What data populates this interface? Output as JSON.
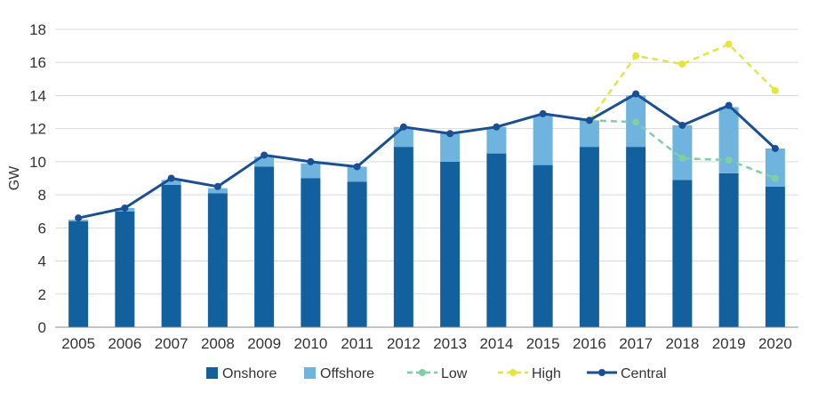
{
  "chart_data": {
    "type": "bar",
    "ylabel": "GW",
    "xlabel": "",
    "ylim": [
      0,
      18
    ],
    "yticks": [
      0,
      2,
      4,
      6,
      8,
      10,
      12,
      14,
      16,
      18
    ],
    "grid": true,
    "legend_position": "bottom",
    "categories": [
      "2005",
      "2006",
      "2007",
      "2008",
      "2009",
      "2010",
      "2011",
      "2012",
      "2013",
      "2014",
      "2015",
      "2016",
      "2017",
      "2018",
      "2019",
      "2020"
    ],
    "stacked_bars": [
      {
        "name": "Onshore",
        "color": "#12609e",
        "values": [
          6.4,
          7.0,
          8.6,
          8.1,
          9.7,
          9.0,
          8.8,
          10.9,
          10.0,
          10.5,
          9.8,
          10.9,
          10.9,
          8.9,
          9.3,
          8.5
        ]
      },
      {
        "name": "Offshore",
        "color": "#6fb4df",
        "values": [
          0.1,
          0.2,
          0.3,
          0.3,
          0.6,
          0.9,
          0.9,
          1.2,
          1.7,
          1.6,
          3.0,
          1.6,
          3.1,
          3.3,
          4.0,
          2.3
        ]
      }
    ],
    "lines": [
      {
        "name": "Low",
        "color": "#7fcfa3",
        "dashed": true,
        "values": [
          null,
          null,
          null,
          null,
          null,
          null,
          null,
          null,
          null,
          null,
          null,
          12.5,
          12.4,
          10.2,
          10.1,
          9.0
        ]
      },
      {
        "name": "High",
        "color": "#e4e63f",
        "dashed": true,
        "values": [
          null,
          null,
          null,
          null,
          null,
          null,
          null,
          null,
          null,
          null,
          null,
          12.5,
          16.4,
          15.9,
          17.1,
          14.3
        ]
      },
      {
        "name": "Central",
        "color": "#1a4f93",
        "dashed": false,
        "values": [
          6.6,
          7.2,
          9.0,
          8.5,
          10.4,
          10.0,
          9.7,
          12.1,
          11.7,
          12.1,
          12.9,
          12.5,
          14.1,
          12.2,
          13.4,
          10.8
        ]
      }
    ],
    "legend": [
      "Onshore",
      "Offshore",
      "Low",
      "High",
      "Central"
    ],
    "colors": {
      "grid": "#d9d9d9",
      "axis": "#888888",
      "text": "#333333"
    }
  }
}
